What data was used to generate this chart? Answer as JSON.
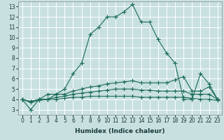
{
  "title": "",
  "xlabel": "Humidex (Indice chaleur)",
  "bg_color": "#c8e0e0",
  "grid_color": "#ffffff",
  "line_color": "#1a6b5a",
  "x_ticks": [
    0,
    1,
    2,
    3,
    4,
    5,
    6,
    7,
    8,
    9,
    10,
    11,
    12,
    13,
    14,
    15,
    16,
    17,
    18,
    19,
    20,
    21,
    22,
    23
  ],
  "ylim": [
    2.5,
    13.5
  ],
  "xlim": [
    -0.5,
    23.5
  ],
  "yticks": [
    3,
    4,
    5,
    6,
    7,
    8,
    9,
    10,
    11,
    12,
    13
  ],
  "lines": [
    {
      "x": [
        0,
        1,
        2,
        3,
        4,
        5,
        6,
        7,
        8,
        9,
        10,
        11,
        12,
        13,
        14,
        15,
        16,
        17,
        18,
        19,
        20,
        21,
        22,
        23
      ],
      "y": [
        4.0,
        3.0,
        4.0,
        4.5,
        4.5,
        5.0,
        6.5,
        7.5,
        10.3,
        11.0,
        12.0,
        12.0,
        12.5,
        13.2,
        11.5,
        11.5,
        9.8,
        8.5,
        7.5,
        4.0,
        4.0,
        6.5,
        5.5,
        4.0
      ]
    },
    {
      "x": [
        0,
        1,
        2,
        3,
        4,
        5,
        6,
        7,
        8,
        9,
        10,
        11,
        12,
        13,
        14,
        15,
        16,
        17,
        18,
        19,
        20,
        21,
        22,
        23
      ],
      "y": [
        4.0,
        3.8,
        4.0,
        4.0,
        4.5,
        4.5,
        4.8,
        5.0,
        5.2,
        5.3,
        5.5,
        5.6,
        5.7,
        5.8,
        5.6,
        5.6,
        5.6,
        5.6,
        5.9,
        6.2,
        4.8,
        4.8,
        5.2,
        4.0
      ]
    },
    {
      "x": [
        0,
        1,
        2,
        3,
        4,
        5,
        6,
        7,
        8,
        9,
        10,
        11,
        12,
        13,
        14,
        15,
        16,
        17,
        18,
        19,
        20,
        21,
        22,
        23
      ],
      "y": [
        4.0,
        3.8,
        4.0,
        4.0,
        4.2,
        4.3,
        4.5,
        4.6,
        4.7,
        4.8,
        4.9,
        5.0,
        5.0,
        5.0,
        4.9,
        4.9,
        4.8,
        4.8,
        4.8,
        4.8,
        4.5,
        4.5,
        4.5,
        4.0
      ]
    },
    {
      "x": [
        0,
        1,
        2,
        3,
        4,
        5,
        6,
        7,
        8,
        9,
        10,
        11,
        12,
        13,
        14,
        15,
        16,
        17,
        18,
        19,
        20,
        21,
        22,
        23
      ],
      "y": [
        4.0,
        3.7,
        3.9,
        4.0,
        4.0,
        4.1,
        4.2,
        4.2,
        4.3,
        4.3,
        4.3,
        4.3,
        4.3,
        4.3,
        4.2,
        4.2,
        4.2,
        4.2,
        4.2,
        4.2,
        4.1,
        4.0,
        4.0,
        3.9
      ]
    }
  ],
  "marker": "+",
  "markersize": 4,
  "linewidth": 0.8,
  "label_fontsize": 6.5,
  "tick_fontsize": 5.5
}
